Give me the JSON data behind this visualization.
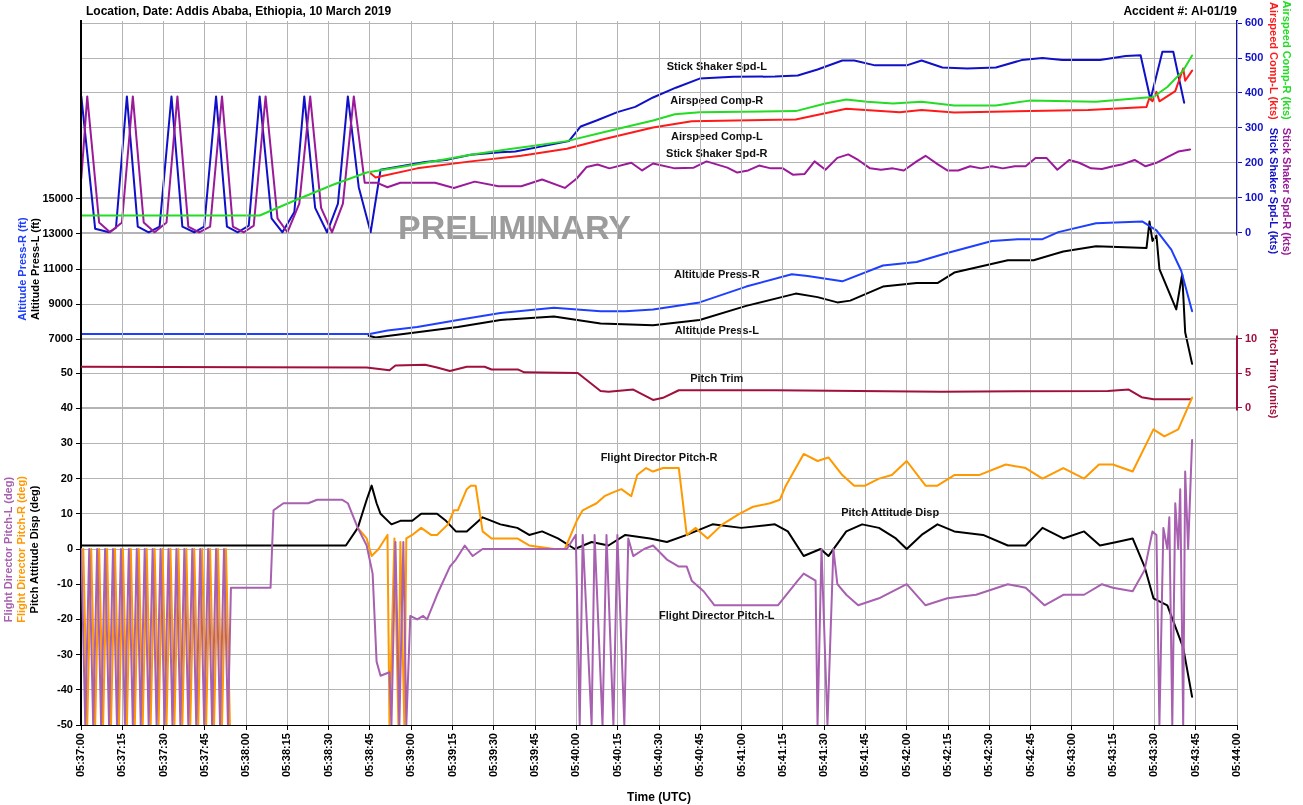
{
  "chart_data": [
    {
      "type": "line",
      "title": "Location, Date: Addis Ababa, Ethiopia, 10 March 2019",
      "subtitle": "Accident #: AI-01/19",
      "ylabel": "Altitude Press-R (ft)\nAltitude Press-L (ft)",
      "y2label": "Airspeed Comp-R (kts)\nStick Shaker Spd-R (kts)\nAirspeed Comp-L (kts)\nStick Shaker Spd-L (kts)",
      "xlim": [
        5.61667,
        5.73333
      ],
      "ylim": [
        -14960,
        25120
      ],
      "yticks": [
        7000,
        9000,
        11000,
        13000,
        15000
      ],
      "y2lim": [
        -1410,
        606
      ],
      "y2ticks": [
        0,
        100,
        200,
        300,
        400,
        500,
        600
      ],
      "tick_labels": "y",
      "grid": "y",
      "marker": "none",
      "series": [
        {
          "name": "Altitude Press-R",
          "color": "#1f3fff",
          "x": [
            5.6167,
            5.6458,
            5.6476,
            5.6506,
            5.6547,
            5.659,
            5.6644,
            5.6691,
            5.6716,
            5.6744,
            5.6791,
            5.6838,
            5.6884,
            5.69,
            5.6935,
            5.6976,
            5.701,
            5.704,
            5.7086,
            5.7112,
            5.7137,
            5.7153,
            5.7191,
            5.7238,
            5.7252,
            5.7267,
            5.7277,
            5.7288
          ],
          "values": [
            7300,
            7300,
            7500,
            7700,
            8100,
            8500,
            8800,
            8600,
            8600,
            8700,
            9100,
            10000,
            10700,
            10600,
            10300,
            11200,
            11400,
            11900,
            12600,
            12700,
            12700,
            13100,
            13600,
            13700,
            13200,
            12100,
            10900,
            8600
          ]
        },
        {
          "name": "Altitude Press-L",
          "color": "#000000",
          "x": [
            5.6457,
            5.6464,
            5.6506,
            5.6547,
            5.659,
            5.6644,
            5.6691,
            5.6744,
            5.6791,
            5.6838,
            5.6888,
            5.691,
            5.693,
            5.6943,
            5.6976,
            5.701,
            5.7031,
            5.7048,
            5.7102,
            5.7128,
            5.7158,
            5.7191,
            5.7242,
            5.7245,
            5.7248,
            5.7252,
            5.7255,
            5.7272,
            5.7278,
            5.7281,
            5.7288
          ],
          "values": [
            7200,
            7100,
            7400,
            7700,
            8100,
            8300,
            7900,
            7800,
            8100,
            8900,
            9600,
            9400,
            9100,
            9200,
            10000,
            10200,
            10200,
            10800,
            11500,
            11500,
            12000,
            12300,
            12200,
            13700,
            12600,
            12900,
            11000,
            8700,
            10700,
            7400,
            5600
          ]
        },
        {
          "name": "Airspeed Comp-R",
          "color": "#22dd22",
          "axis": "y2",
          "x": [
            5.6167,
            5.6347,
            5.638,
            5.6421,
            5.6455,
            5.6506,
            5.656,
            5.6611,
            5.6657,
            5.6695,
            5.6744,
            5.6766,
            5.6791,
            5.6888,
            5.6918,
            5.6939,
            5.696,
            5.6986,
            5.7015,
            5.7048,
            5.709,
            5.7124,
            5.7191,
            5.7242,
            5.7248,
            5.7263,
            5.7279,
            5.7288
          ],
          "values": [
            49,
            49,
            89,
            137,
            172,
            196,
            223,
            244,
            262,
            288,
            321,
            339,
            345,
            348,
            370,
            381,
            375,
            370,
            375,
            364,
            364,
            378,
            375,
            387,
            387,
            417,
            464,
            507
          ]
        },
        {
          "name": "Stick Shaker Spd-R",
          "color": "#9a1a9a",
          "axis": "y2",
          "x": [
            5.6167,
            5.6173,
            5.6185,
            5.6196,
            5.6208,
            5.6219,
            5.623,
            5.6241,
            5.6253,
            5.6264,
            5.6275,
            5.6286,
            5.6297,
            5.6309,
            5.632,
            5.6331,
            5.6341,
            5.6353,
            5.6365,
            5.6375,
            5.6387,
            5.6398,
            5.6409,
            5.642,
            5.6431,
            5.6442,
            5.6453,
            5.6465,
            5.6476,
            5.6489,
            5.6524,
            5.6543,
            5.6564,
            5.6588,
            5.6611,
            5.6632,
            5.6655,
            5.6667,
            5.6677,
            5.6688,
            5.67,
            5.6722,
            5.6733,
            5.6744,
            5.6766,
            5.6785,
            5.6798,
            5.6819,
            5.6829,
            5.684,
            5.6851,
            5.6863,
            5.6875,
            5.6885,
            5.6897,
            5.6907,
            5.6918,
            5.693,
            5.6941,
            5.6951,
            5.6963,
            5.6974,
            5.6986,
            5.6997,
            5.701,
            5.7019,
            5.7031,
            5.7041,
            5.7052,
            5.7064,
            5.7075,
            5.7086,
            5.7097,
            5.7109,
            5.712,
            5.713,
            5.7141,
            5.7152,
            5.7164,
            5.7174,
            5.7186,
            5.7197,
            5.7208,
            5.7218,
            5.723,
            5.7241,
            5.7252,
            5.7263,
            5.7274,
            5.7286
          ],
          "values": [
            155,
            390,
            29,
            1,
            29,
            390,
            29,
            1,
            29,
            390,
            17,
            1,
            17,
            390,
            17,
            1,
            20,
            390,
            41,
            1,
            83,
            390,
            71,
            1,
            83,
            390,
            143,
            143,
            130,
            143,
            143,
            128,
            146,
            133,
            133,
            152,
            128,
            155,
            188,
            195,
            184,
            200,
            178,
            198,
            184,
            186,
            204,
            186,
            172,
            178,
            192,
            184,
            184,
            166,
            168,
            204,
            180,
            214,
            224,
            208,
            184,
            180,
            184,
            178,
            204,
            220,
            196,
            178,
            178,
            190,
            184,
            190,
            184,
            190,
            190,
            214,
            214,
            180,
            208,
            200,
            184,
            182,
            190,
            196,
            208,
            190,
            200,
            216,
            232,
            238
          ]
        },
        {
          "name": "Airspeed Comp-L",
          "color": "#ff1a1a",
          "axis": "y2",
          "x": [
            5.6458,
            5.6464,
            5.6506,
            5.656,
            5.6611,
            5.6657,
            5.6695,
            5.6744,
            5.6783,
            5.6888,
            5.6939,
            5.6993,
            5.7015,
            5.7048,
            5.7183,
            5.7242,
            5.7245,
            5.7248,
            5.7252,
            5.7255,
            5.7271,
            5.7279,
            5.7281,
            5.7288
          ],
          "values": [
            172,
            158,
            184,
            204,
            220,
            240,
            268,
            301,
            319,
            324,
            355,
            345,
            351,
            344,
            351,
            360,
            387,
            376,
            403,
            376,
            405,
            470,
            435,
            464
          ]
        },
        {
          "name": "Stick Shaker Spd-L",
          "color": "#1010c8",
          "axis": "y2",
          "x": [
            5.6167,
            5.6181,
            5.6195,
            5.6202,
            5.6213,
            5.6224,
            5.6235,
            5.6246,
            5.6258,
            5.6269,
            5.6281,
            5.6291,
            5.6303,
            5.6314,
            5.6325,
            5.6336,
            5.6347,
            5.6359,
            5.637,
            5.6382,
            5.6392,
            5.6403,
            5.6415,
            5.6426,
            5.6436,
            5.6447,
            5.6459,
            5.6469,
            5.6514,
            5.6537,
            5.656,
            5.659,
            5.6605,
            5.6632,
            5.6659,
            5.6671,
            5.6687,
            5.6708,
            5.6726,
            5.6744,
            5.6767,
            5.6791,
            5.6825,
            5.6867,
            5.689,
            5.691,
            5.6935,
            5.6947,
            5.6968,
            5.7,
            5.7015,
            5.7036,
            5.7061,
            5.709,
            5.7116,
            5.7137,
            5.7157,
            5.7195,
            5.7221,
            5.7236,
            5.7246,
            5.7258,
            5.7269,
            5.728
          ],
          "values": [
            390,
            11,
            1,
            14,
            390,
            17,
            1,
            17,
            390,
            17,
            1,
            17,
            390,
            17,
            1,
            20,
            390,
            41,
            1,
            59,
            390,
            71,
            1,
            83,
            390,
            130,
            1,
            180,
            202,
            209,
            223,
            230,
            232,
            247,
            262,
            304,
            321,
            345,
            360,
            387,
            415,
            441,
            446,
            447,
            450,
            467,
            493,
            493,
            479,
            479,
            493,
            473,
            470,
            473,
            494,
            500,
            494,
            494,
            506,
            508,
            381,
            518,
            518,
            372
          ]
        }
      ],
      "annotations": [
        "PRELIMINARY"
      ]
    },
    {
      "type": "line",
      "xlabel": "Time (UTC)",
      "ylabel": "Flight Director Pitch-L (deg)\nFlight Director Pitch-R (deg)\nPitch Attitude Disp (deg)",
      "y2label": "Pitch Trim (units)",
      "xlim": [
        5.61667,
        5.73333
      ],
      "xticks": [
        {
          "value": 5.61667,
          "label": "05:37:00"
        },
        {
          "value": 5.62083,
          "label": "05:37:15"
        },
        {
          "value": 5.625,
          "label": "05:37:30"
        },
        {
          "value": 5.62917,
          "label": "05:37:45"
        },
        {
          "value": 5.63333,
          "label": "05:38:00"
        },
        {
          "value": 5.6375,
          "label": "05:38:15"
        },
        {
          "value": 5.64167,
          "label": "05:38:30"
        },
        {
          "value": 5.64583,
          "label": "05:38:45"
        },
        {
          "value": 5.65,
          "label": "05:39:00"
        },
        {
          "value": 5.65417,
          "label": "05:39:15"
        },
        {
          "value": 5.65833,
          "label": "05:39:30"
        },
        {
          "value": 5.6625,
          "label": "05:39:45"
        },
        {
          "value": 5.66667,
          "label": "05:40:00"
        },
        {
          "value": 5.67083,
          "label": "05:40:15"
        },
        {
          "value": 5.675,
          "label": "05:40:30"
        },
        {
          "value": 5.67917,
          "label": "05:40:45"
        },
        {
          "value": 5.68333,
          "label": "05:41:00"
        },
        {
          "value": 5.6875,
          "label": "05:41:15"
        },
        {
          "value": 5.69167,
          "label": "05:41:30"
        },
        {
          "value": 5.69583,
          "label": "05:41:45"
        },
        {
          "value": 5.7,
          "label": "05:42:00"
        },
        {
          "value": 5.70417,
          "label": "05:42:15"
        },
        {
          "value": 5.70833,
          "label": "05:42:30"
        },
        {
          "value": 5.7125,
          "label": "05:42:45"
        },
        {
          "value": 5.71667,
          "label": "05:43:00"
        },
        {
          "value": 5.72083,
          "label": "05:43:15"
        },
        {
          "value": 5.725,
          "label": "05:43:30"
        },
        {
          "value": 5.72917,
          "label": "05:43:45"
        },
        {
          "value": 5.73333,
          "label": "05:44:00"
        }
      ],
      "ylim": [
        -50,
        150
      ],
      "yticks": [
        -50,
        -40,
        -30,
        -20,
        -10,
        0,
        10,
        20,
        30,
        40,
        50
      ],
      "y2lim": [
        -46,
        56
      ],
      "y2ticks": [
        0,
        5,
        10
      ],
      "grid": true,
      "marker": "none",
      "series": [
        {
          "name": "Flight Director Pitch-L",
          "color": "#a860b0",
          "x": [
            5.6167,
            5.6171,
            5.6175,
            5.6179,
            5.6183,
            5.6187,
            5.6191,
            5.6195,
            5.6199,
            5.6203,
            5.6207,
            5.6211,
            5.6215,
            5.6219,
            5.6223,
            5.6227,
            5.6231,
            5.6235,
            5.6239,
            5.6243,
            5.6247,
            5.6251,
            5.6255,
            5.6259,
            5.6263,
            5.6267,
            5.6271,
            5.6275,
            5.6279,
            5.6283,
            5.6287,
            5.6291,
            5.6295,
            5.6299,
            5.6303,
            5.6307,
            5.6311,
            5.6315,
            5.6318,
            5.6358,
            5.6361,
            5.6371,
            5.6396,
            5.6405,
            5.643,
            5.6436,
            5.6446,
            5.6455,
            5.6461,
            5.6465,
            5.6469,
            5.6478,
            5.648,
            5.6484,
            5.6488,
            5.6492,
            5.6495,
            5.6499,
            5.6506,
            5.6512,
            5.6516,
            5.6526,
            5.6539,
            5.6545,
            5.6554,
            5.6562,
            5.6572,
            5.659,
            5.6632,
            5.6657,
            5.6666,
            5.667,
            5.6673,
            5.6682,
            5.6685,
            5.6693,
            5.6697,
            5.6704,
            5.6708,
            5.6715,
            5.6719,
            5.6724,
            5.6735,
            5.6744,
            5.6758,
            5.677,
            5.6778,
            5.6783,
            5.6795,
            5.6806,
            5.6845,
            5.687,
            5.689,
            5.6896,
            5.6908,
            5.691,
            5.6914,
            5.692,
            5.6926,
            5.693,
            5.6939,
            5.6951,
            5.6972,
            5.7,
            5.7019,
            5.7041,
            5.707,
            5.7102,
            5.712,
            5.7139,
            5.7158,
            5.7179,
            5.7197,
            5.7208,
            5.7228,
            5.724,
            5.7248,
            5.7252,
            5.7255,
            5.7259,
            5.7263,
            5.7265,
            5.7268,
            5.7271,
            5.7274,
            5.7276,
            5.7279,
            5.7281,
            5.7284,
            5.7288
          ],
          "values": [
            0,
            -50,
            0,
            -50,
            0,
            -50,
            0,
            -50,
            0,
            -50,
            0,
            -50,
            0,
            -50,
            0,
            -50,
            0,
            -50,
            0,
            -50,
            0,
            -50,
            0,
            -50,
            0,
            -50,
            0,
            -50,
            0,
            -50,
            0,
            -50,
            0,
            -50,
            0,
            -50,
            0,
            -50,
            -11,
            -11,
            11,
            13,
            13,
            14,
            14,
            13,
            6,
            1,
            -7,
            -32,
            -36,
            -35,
            -50,
            2,
            -50,
            2,
            -50,
            -19,
            -20,
            -19,
            -20,
            -13,
            -5,
            -3,
            1,
            -2,
            0,
            0,
            0,
            0,
            4,
            -50,
            4,
            -50,
            4,
            -50,
            4,
            -50,
            4,
            -50,
            3,
            -2,
            0,
            1,
            -3,
            -5,
            -5,
            -9,
            -12,
            -16,
            -16,
            -16,
            -9,
            -7,
            -9,
            -50,
            0,
            -50,
            0,
            -10,
            -13,
            -16,
            -14,
            -10,
            -16,
            -14,
            -13,
            -10,
            -11,
            -16,
            -13,
            -13,
            -10,
            -11,
            -12,
            -6,
            5,
            4,
            -50,
            6,
            0,
            9,
            -50,
            13,
            0,
            17,
            -50,
            22,
            0,
            31
          ]
        },
        {
          "name": "Flight Director Pitch-R",
          "color": "#ff9900",
          "x": [
            5.6169,
            5.6173,
            5.6177,
            5.6181,
            5.6185,
            5.6189,
            5.6193,
            5.6197,
            5.6201,
            5.6205,
            5.6209,
            5.6213,
            5.6217,
            5.6221,
            5.6225,
            5.6229,
            5.6233,
            5.6237,
            5.6241,
            5.6245,
            5.6249,
            5.6253,
            5.6257,
            5.6261,
            5.6265,
            5.6269,
            5.6273,
            5.6277,
            5.6281,
            5.6285,
            5.6289,
            5.6293,
            5.6297,
            5.6301,
            5.6305,
            5.6309,
            5.6313,
            5.6317,
            5.6318,
            5.6358,
            5.6361,
            5.6371,
            5.6396,
            5.6405,
            5.643,
            5.6436,
            5.6446,
            5.6455,
            5.646,
            5.6467,
            5.6476,
            5.6478,
            5.6483,
            5.6487,
            5.6489,
            5.6493,
            5.6495,
            5.6501,
            5.651,
            5.652,
            5.6526,
            5.6537,
            5.6543,
            5.6547,
            5.6556,
            5.656,
            5.6565,
            5.6572,
            5.6581,
            5.6607,
            5.6619,
            5.6644,
            5.6655,
            5.6667,
            5.6673,
            5.6687,
            5.6695,
            5.6703,
            5.6712,
            5.6722,
            5.6728,
            5.6737,
            5.6744,
            5.6754,
            5.677,
            5.6778,
            5.6787,
            5.6799,
            5.6814,
            5.6831,
            5.6845,
            5.6862,
            5.6872,
            5.6878,
            5.6896,
            5.691,
            5.6921,
            5.6935,
            5.6947,
            5.6958,
            5.6972,
            5.6985,
            5.7,
            5.7019,
            5.7031,
            5.7048,
            5.7073,
            5.71,
            5.712,
            5.7137,
            5.7158,
            5.7179,
            5.7194,
            5.7208,
            5.7228,
            5.7249,
            5.726,
            5.7274,
            5.7288
          ],
          "values": [
            0,
            -50,
            0,
            -50,
            0,
            -50,
            0,
            -50,
            0,
            -50,
            0,
            -50,
            0,
            -50,
            0,
            -50,
            0,
            -50,
            0,
            -50,
            0,
            -50,
            0,
            -50,
            0,
            -50,
            0,
            -50,
            0,
            -50,
            0,
            -50,
            0,
            -50,
            0,
            -50,
            0,
            -50,
            null,
            null,
            null,
            null,
            null,
            null,
            null,
            null,
            6,
            3,
            -2,
            0,
            4,
            -50,
            3,
            -50,
            2,
            -50,
            3,
            4,
            6,
            4,
            4,
            7,
            11,
            11,
            17,
            18,
            18,
            5,
            3,
            3,
            1,
            0,
            0,
            8,
            11,
            13,
            15,
            16,
            17,
            15,
            21,
            23,
            22,
            23,
            23,
            4,
            6,
            3,
            7,
            10,
            12,
            13,
            14,
            18,
            27,
            25,
            26,
            21,
            18,
            18,
            20,
            21,
            25,
            18,
            18,
            21,
            21,
            24,
            23,
            20,
            23,
            20,
            24,
            24,
            22,
            34,
            32,
            34,
            43
          ]
        },
        {
          "name": "Pitch Attitude Disp",
          "color": "#000000",
          "x": [
            5.6167,
            5.6434,
            5.6446,
            5.6455,
            5.646,
            5.6465,
            5.6469,
            5.648,
            5.6489,
            5.6501,
            5.651,
            5.6526,
            5.6535,
            5.6545,
            5.6556,
            5.6572,
            5.659,
            5.6607,
            5.6619,
            5.6632,
            5.6648,
            5.6665,
            5.6682,
            5.6699,
            5.6716,
            5.6741,
            5.6758,
            5.6778,
            5.6804,
            5.6833,
            5.6867,
            5.688,
            5.6896,
            5.6913,
            5.6921,
            5.6939,
            5.6955,
            5.6972,
            5.6989,
            5.7,
            5.7015,
            5.7031,
            5.7048,
            5.7077,
            5.7102,
            5.712,
            5.7137,
            5.7158,
            5.7179,
            5.7195,
            5.7212,
            5.7228,
            5.724,
            5.7249,
            5.7263,
            5.7279,
            5.7288
          ],
          "values": [
            1,
            1,
            6,
            14,
            18,
            13,
            10,
            7,
            8,
            8,
            10,
            10,
            8,
            5,
            5,
            9,
            7,
            6,
            4,
            5,
            3,
            0,
            2,
            1,
            4,
            3,
            2,
            4,
            7,
            6,
            7,
            5,
            -2,
            0,
            -2,
            5,
            7,
            6,
            3,
            0,
            4,
            7,
            5,
            4,
            1,
            1,
            6,
            3,
            5,
            1,
            2,
            3,
            -5,
            -14,
            -16,
            -28,
            -42
          ]
        },
        {
          "name": "Pitch Trim",
          "color": "#a0103c",
          "axis": "y2",
          "x": [
            5.6167,
            5.6455,
            5.6478,
            5.6484,
            5.6514,
            5.6526,
            5.6539,
            5.6556,
            5.6574,
            5.6581,
            5.6608,
            5.6614,
            5.6668,
            5.6691,
            5.6699,
            5.6724,
            5.6744,
            5.6754,
            5.677,
            5.6867,
            5.7035,
            5.7203,
            5.7224,
            5.7237,
            5.7249,
            5.7287
          ],
          "values": [
            5.9,
            5.8,
            5.4,
            6.1,
            6.2,
            5.8,
            5.3,
            5.9,
            5.9,
            5.5,
            5.5,
            5.1,
            5.0,
            2.4,
            2.3,
            2.6,
            1.1,
            1.4,
            2.5,
            2.5,
            2.3,
            2.4,
            2.6,
            1.5,
            1.2,
            1.2
          ]
        }
      ]
    }
  ]
}
